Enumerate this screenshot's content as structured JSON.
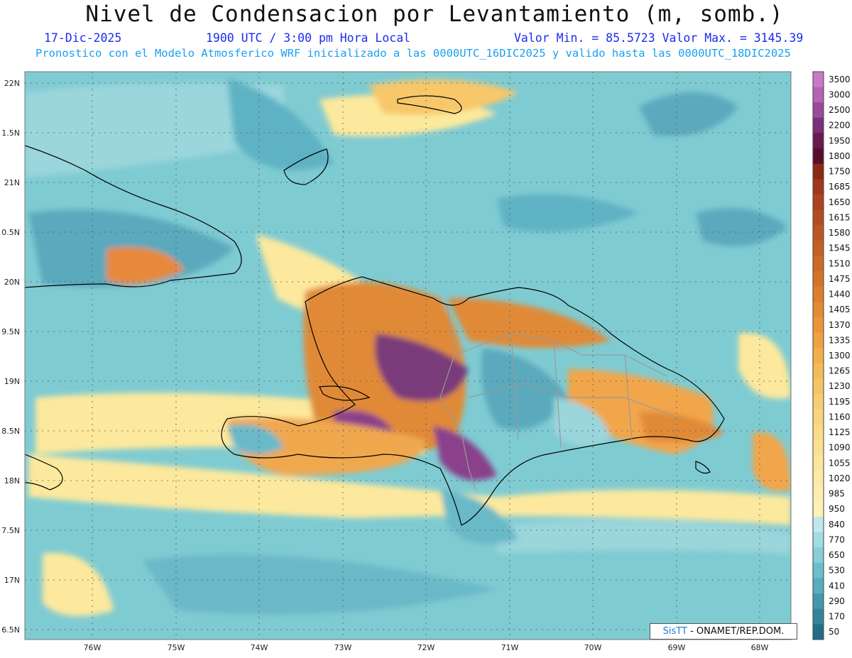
{
  "header": {
    "title": "Nivel de Condensacion por Levantamiento (m, somb.)",
    "date": "17-Dic-2025",
    "time": "1900 UTC / 3:00 pm Hora Local",
    "min_max": "Valor Min. = 85.5723  Valor Max. = 3145.39",
    "subtitle": "Pronostico con el Modelo Atmosferico WRF inicializado a las 0000UTC_16DIC2025 y valido hasta las  0000UTC_18DIC2025"
  },
  "map": {
    "lat_labels": [
      "22N",
      "1.5N",
      "21N",
      "0.5N",
      "20N",
      "9.5N",
      "19N",
      "8.5N",
      "18N",
      "7.5N",
      "17N",
      "6.5N"
    ],
    "lon_labels": [
      "76W",
      "75W",
      "74W",
      "73W",
      "72W",
      "71W",
      "70W",
      "69W",
      "68W"
    ],
    "colorbar": {
      "labels": [
        "3500",
        "3000",
        "2500",
        "2200",
        "1950",
        "1800",
        "1750",
        "1685",
        "1650",
        "1615",
        "1580",
        "1545",
        "1510",
        "1475",
        "1440",
        "1405",
        "1370",
        "1335",
        "1300",
        "1265",
        "1230",
        "1195",
        "1160",
        "1125",
        "1090",
        "1055",
        "1020",
        "985",
        "950",
        "840",
        "770",
        "650",
        "530",
        "410",
        "290",
        "170",
        "50"
      ],
      "colors": [
        "#c87ac8",
        "#b464b4",
        "#9a4a9a",
        "#7a2f7a",
        "#6a1a50",
        "#5a0c2c",
        "#8a2a14",
        "#a0361c",
        "#ae421e",
        "#b44c20",
        "#bc5622",
        "#c46024",
        "#cc6a28",
        "#d4742a",
        "#dc7e2e",
        "#e48a32",
        "#ea9638",
        "#eea240",
        "#f2ae4c",
        "#f4ba58",
        "#f6c466",
        "#f8cc72",
        "#f9d47e",
        "#fadb88",
        "#fbe092",
        "#fce69c",
        "#fdeaa6",
        "#fdeeae",
        "#fef1b6",
        "#bfe8ec",
        "#9fdce4",
        "#86ced8",
        "#6cbecc",
        "#56adbe",
        "#4398ac",
        "#33849a",
        "#226e86"
      ]
    },
    "credit_logo": "SisTT",
    "credit_text": " - ONAMET/REP.DOM."
  }
}
